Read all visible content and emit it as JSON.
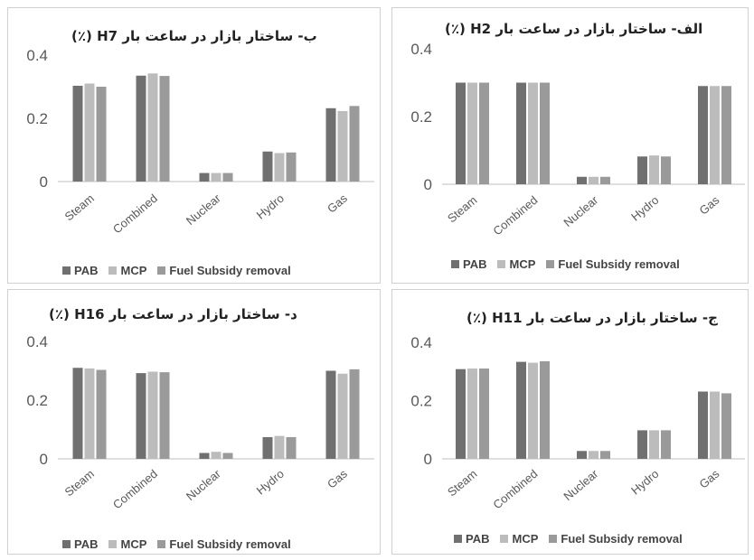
{
  "colors": {
    "series": [
      "#707070",
      "#bcbcbc",
      "#9a9a9a"
    ],
    "axis": "#bfbfbf",
    "text": "#595959"
  },
  "series_names": [
    "PAB",
    "MCP",
    "Fuel Subsidy removal"
  ],
  "categories": [
    "Steam",
    "Combined",
    "Nuclear",
    "Hydro",
    "Gas"
  ],
  "chart_data": [
    {
      "type": "bar",
      "title": "ب- ساختار بازار در ساعت بار H7 (٪)",
      "categories": [
        "Steam",
        "Combined",
        "Nuclear",
        "Hydro",
        "Gas"
      ],
      "y_ticks": [
        "0",
        "0.2",
        "0.4"
      ],
      "ylim": [
        0,
        0.4
      ],
      "legend": "bottom",
      "series": [
        {
          "name": "PAB",
          "values": [
            0.303,
            0.335,
            0.027,
            0.095,
            0.232
          ]
        },
        {
          "name": "MCP",
          "values": [
            0.31,
            0.342,
            0.027,
            0.09,
            0.223
          ]
        },
        {
          "name": "Fuel Subsidy removal",
          "values": [
            0.3,
            0.334,
            0.027,
            0.092,
            0.239
          ]
        }
      ]
    },
    {
      "type": "bar",
      "title": "الف- ساختار بازار در ساعت بار H2 (٪)",
      "categories": [
        "Steam",
        "Combined",
        "Nuclear",
        "Hydro",
        "Gas"
      ],
      "y_ticks": [
        "0",
        "0.2",
        "0.4"
      ],
      "ylim": [
        0,
        0.4
      ],
      "legend": "bottom",
      "series": [
        {
          "name": "PAB",
          "values": [
            0.3,
            0.3,
            0.022,
            0.082,
            0.29
          ]
        },
        {
          "name": "MCP",
          "values": [
            0.3,
            0.3,
            0.022,
            0.085,
            0.29
          ]
        },
        {
          "name": "Fuel Subsidy removal",
          "values": [
            0.3,
            0.3,
            0.022,
            0.082,
            0.29
          ]
        }
      ]
    },
    {
      "type": "bar",
      "title": "د- ساختار بازار در ساعت بار H16 (٪)",
      "categories": [
        "Steam",
        "Combined",
        "Nuclear",
        "Hydro",
        "Gas"
      ],
      "y_ticks": [
        "0",
        "0.2",
        "0.4"
      ],
      "ylim": [
        0,
        0.4
      ],
      "legend": "bottom",
      "series": [
        {
          "name": "PAB",
          "values": [
            0.31,
            0.292,
            0.02,
            0.074,
            0.3
          ]
        },
        {
          "name": "MCP",
          "values": [
            0.308,
            0.297,
            0.024,
            0.078,
            0.29
          ]
        },
        {
          "name": "Fuel Subsidy removal",
          "values": [
            0.303,
            0.295,
            0.02,
            0.074,
            0.305
          ]
        }
      ]
    },
    {
      "type": "bar",
      "title": "ج- ساختار بازار در ساعت بار H11 (٪)",
      "categories": [
        "Steam",
        "Combined",
        "Nuclear",
        "Hydro",
        "Gas"
      ],
      "y_ticks": [
        "0",
        "0.2",
        "0.4"
      ],
      "ylim": [
        0,
        0.4
      ],
      "legend": "bottom",
      "series": [
        {
          "name": "PAB",
          "values": [
            0.308,
            0.333,
            0.027,
            0.098,
            0.231
          ]
        },
        {
          "name": "MCP",
          "values": [
            0.31,
            0.33,
            0.027,
            0.098,
            0.231
          ]
        },
        {
          "name": "Fuel Subsidy removal",
          "values": [
            0.31,
            0.335,
            0.027,
            0.098,
            0.225
          ]
        }
      ]
    }
  ]
}
